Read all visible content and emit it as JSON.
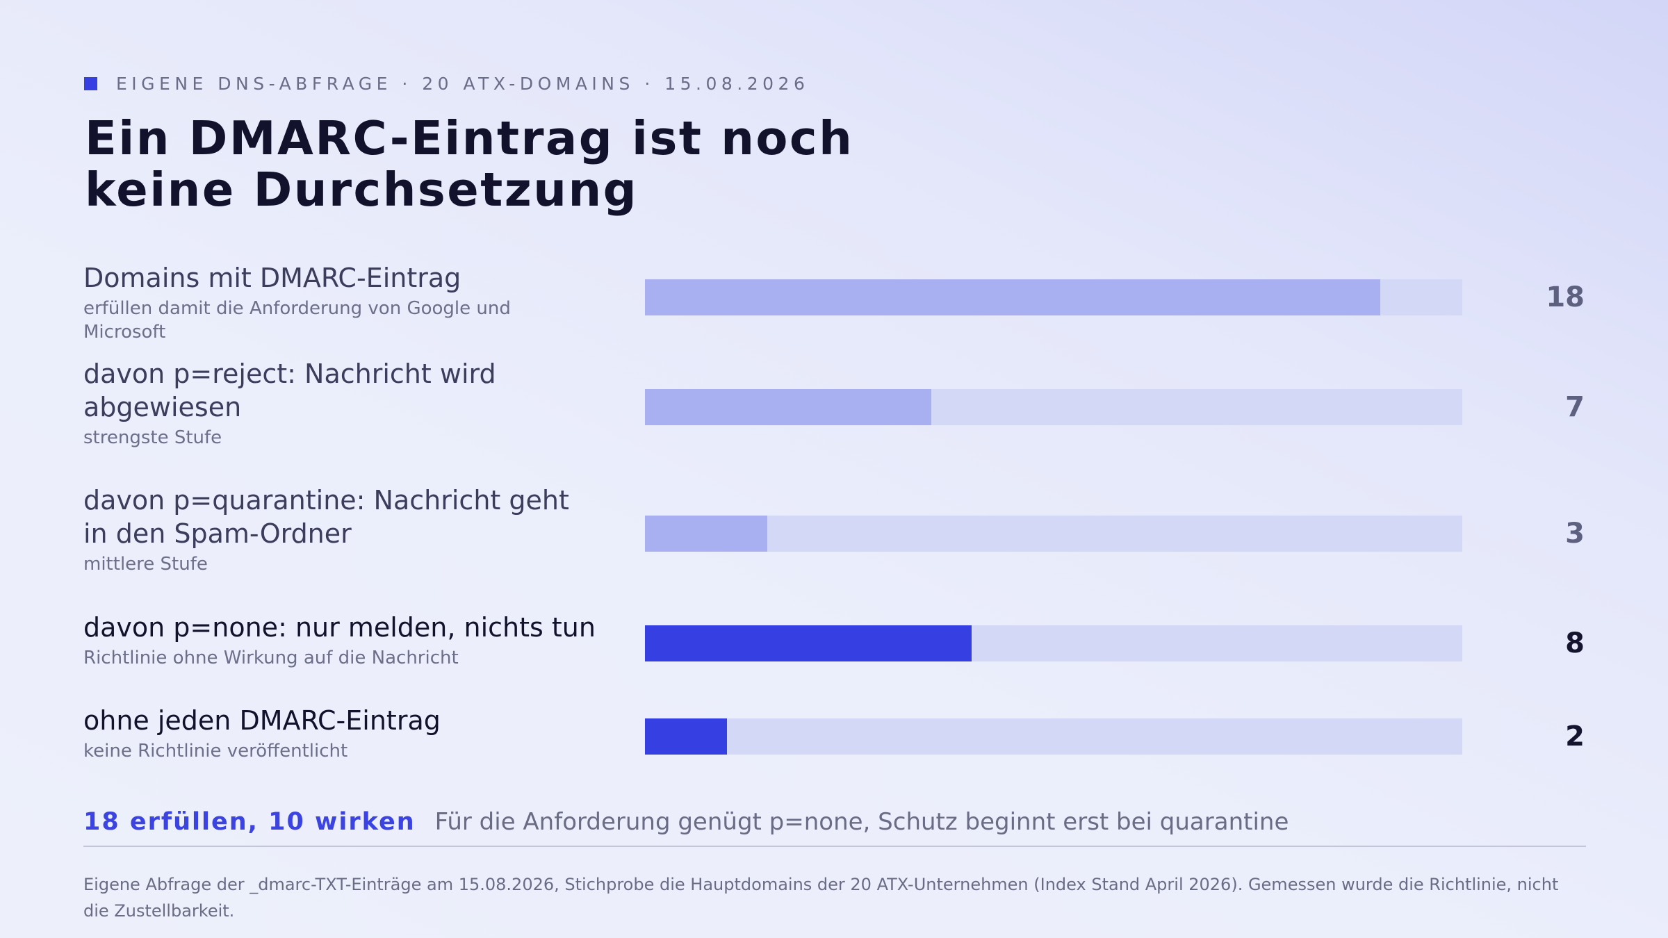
{
  "header": {
    "kicker": "EIGENE DNS-ABFRAGE · 20 ATX-DOMAINS · 15.08.2026",
    "title_line1": "Ein DMARC-Eintrag ist noch",
    "title_line2": "keine Durchsetzung"
  },
  "colors": {
    "accent": "#3640e2",
    "bar_muted": "#a9b0f1",
    "track": "#d4d8f7",
    "value_muted": "#5e6080",
    "value_strong": "#14142e"
  },
  "chart_data": {
    "type": "bar",
    "orientation": "horizontal",
    "xlim": [
      0,
      20
    ],
    "grid": false,
    "rows": [
      {
        "label": "Domains mit DMARC-Eintrag",
        "sublabel": "erfüllen damit die Anforderung von Google und Microsoft",
        "value": 18,
        "display": "18",
        "highlight": false
      },
      {
        "label": "davon p=reject: Nachricht wird abgewiesen",
        "sublabel": "strengste Stufe",
        "value": 7,
        "display": "7",
        "highlight": false
      },
      {
        "label": "davon p=quarantine: Nachricht geht in den Spam-Ordner",
        "sublabel": "mittlere Stufe",
        "value": 3,
        "display": "3",
        "highlight": false
      },
      {
        "label": "davon p=none: nur melden, nichts tun",
        "sublabel": "Richtlinie ohne Wirkung auf die Nachricht",
        "value": 8,
        "display": "8",
        "highlight": true
      },
      {
        "label": "ohne jeden DMARC-Eintrag",
        "sublabel": "keine Richtlinie veröffentlicht",
        "value": 2,
        "display": "2",
        "highlight": true
      }
    ]
  },
  "summary": {
    "headline": "18 erfüllen, 10 wirken",
    "text": "Für die Anforderung genügt p=none, Schutz beginnt erst bei quarantine"
  },
  "footnote": "Eigene Abfrage der _dmarc-TXT-Einträge am 15.08.2026, Stichprobe die Hauptdomains der 20 ATX-Unternehmen (Index Stand April 2026). Gemessen wurde die Richtlinie, nicht die Zustellbarkeit."
}
